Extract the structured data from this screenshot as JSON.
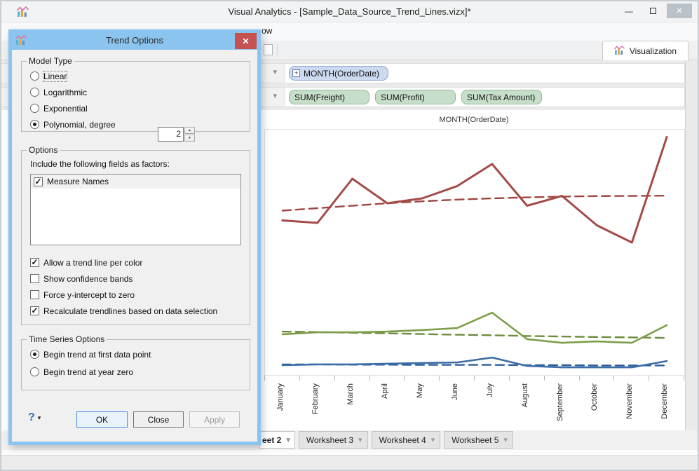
{
  "window": {
    "title": "Visual Analytics - [Sample_Data_Source_Trend_Lines.vizx]*",
    "minimize_glyph": "—",
    "close_glyph": "✕"
  },
  "menubar": {
    "visible_text": "ow"
  },
  "toolbar": {
    "visualization_tab": "Visualization"
  },
  "shelves": {
    "row_dimension": {
      "pills": [
        {
          "label": "MONTH(OrderDate)",
          "expand_glyph": "+",
          "color": "blue"
        }
      ]
    },
    "row_measures": {
      "pills": [
        {
          "label": "SUM(Freight)",
          "color": "green"
        },
        {
          "label": "SUM(Profit)",
          "color": "green"
        },
        {
          "label": "SUM(Tax Amount)",
          "color": "green"
        }
      ]
    }
  },
  "dialog": {
    "title": "Trend Options",
    "close_glyph": "✕",
    "model_type": {
      "legend": "Model Type",
      "radios": [
        {
          "label": "Linear",
          "selected": false,
          "focused": true
        },
        {
          "label": "Logarithmic",
          "selected": false
        },
        {
          "label": "Exponential",
          "selected": false
        },
        {
          "label": "Polynomial, degree",
          "selected": true
        }
      ],
      "degree_value": "2"
    },
    "options": {
      "legend": "Options",
      "factors_label": "Include the following fields as factors:",
      "factor_items": [
        {
          "label": "Measure Names",
          "checked": true
        }
      ],
      "checkboxes": [
        {
          "label": "Allow a trend line per color",
          "checked": true
        },
        {
          "label": "Show confidence bands",
          "checked": false
        },
        {
          "label": "Force y-intercept to zero",
          "checked": false
        },
        {
          "label": "Recalculate trendlines based on data selection",
          "checked": true
        }
      ]
    },
    "time_series": {
      "legend": "Time Series Options",
      "radios": [
        {
          "label": "Begin trend at first data point",
          "selected": true
        },
        {
          "label": "Begin trend at year zero",
          "selected": false
        }
      ]
    },
    "help_label": "?",
    "buttons": {
      "ok": "OK",
      "close": "Close",
      "apply": "Apply"
    }
  },
  "worksheet_tabs": [
    {
      "label": "eet 2",
      "active": true
    },
    {
      "label": "Worksheet 3",
      "active": false
    },
    {
      "label": "Worksheet 4",
      "active": false
    },
    {
      "label": "Worksheet 5",
      "active": false
    }
  ],
  "chart_data": {
    "type": "line",
    "title": "MONTH(OrderDate)",
    "categories": [
      "January",
      "February",
      "March",
      "April",
      "May",
      "June",
      "July",
      "August",
      "September",
      "October",
      "November",
      "December"
    ],
    "ylim": [
      0,
      100
    ],
    "y_axis_visible": false,
    "note": "Y axis is hidden behind the dialog; values are relative estimates on a 0-100 scale. Each solid series has a dashed polynomial trend line.",
    "series": [
      {
        "name": "red-series",
        "color": "#a34b47",
        "line_width": 3,
        "values": [
          63,
          62,
          80,
          70,
          72,
          77,
          86,
          69,
          73,
          61,
          54,
          97
        ],
        "trend": {
          "style": "dashed",
          "color": "#9d4743",
          "values": [
            67,
            68,
            69,
            70,
            70.8,
            71.5,
            72,
            72.4,
            72.7,
            72.9,
            73,
            73.1
          ]
        }
      },
      {
        "name": "green-series",
        "color": "#7d9d4a",
        "line_width": 2.6,
        "values": [
          16.6,
          17.4,
          17.4,
          17.7,
          18.3,
          19.1,
          25.4,
          14.6,
          13.1,
          13.7,
          13.1,
          20.3
        ],
        "trend": {
          "style": "dashed",
          "color": "#6d8c3c",
          "values": [
            17.7,
            17.5,
            17.2,
            17,
            16.7,
            16.4,
            16.2,
            15.9,
            15.7,
            15.5,
            15.3,
            15.1
          ]
        }
      },
      {
        "name": "blue-series",
        "color": "#3c6da6",
        "line_width": 2.6,
        "values": [
          4,
          4.3,
          4.3,
          4.6,
          4.9,
          5.1,
          7.1,
          3.7,
          3.1,
          3.1,
          3.1,
          5.7
        ],
        "trend": {
          "style": "dashed",
          "color": "#2d5f9e",
          "values": [
            4.3,
            4.3,
            4.2,
            4.2,
            4.1,
            4.1,
            4.1,
            4,
            4,
            3.9,
            3.9,
            3.9
          ]
        }
      }
    ]
  }
}
